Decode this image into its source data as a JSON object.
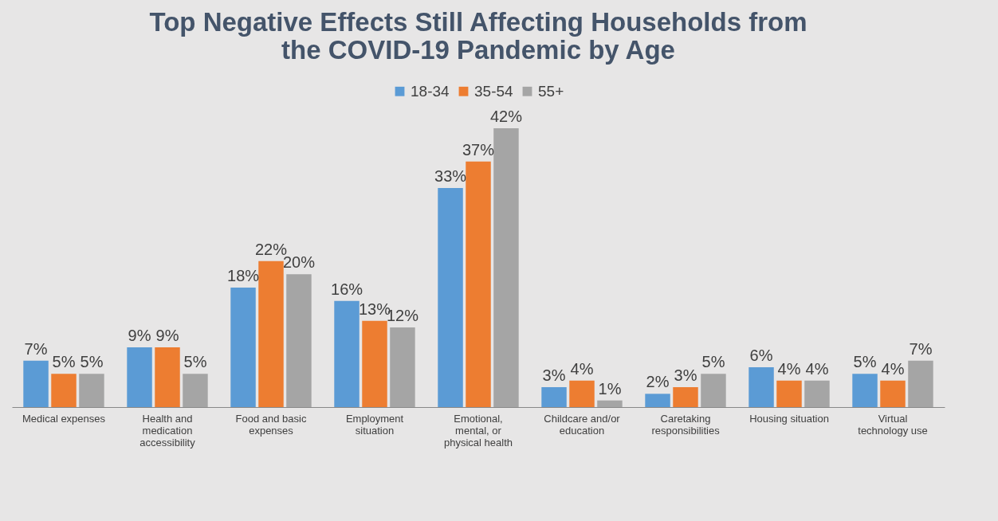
{
  "chart_data": {
    "type": "bar",
    "title": "Top Negative Effects Still Affecting Households from the COVID-19 Pandemic by Age",
    "categories": [
      "Medical expenses",
      "Health and medication accessibility",
      "Food and basic expenses",
      "Employment situation",
      "Emotional, mental, or physical health",
      "Childcare and/or education",
      "Caretaking responsibilities",
      "Housing situation",
      "Virtual technology use"
    ],
    "series": [
      {
        "name": "18-34",
        "color": "#5b9bd5",
        "values": [
          7,
          9,
          18,
          16,
          33,
          3,
          2,
          6,
          5
        ],
        "value_labels": [
          "7%",
          "9%",
          "18%",
          "16%",
          "33%",
          "3%",
          "2%",
          "6%",
          "5%"
        ]
      },
      {
        "name": "35-54",
        "color": "#ed7d31",
        "values": [
          5,
          9,
          22,
          13,
          37,
          4,
          3,
          4,
          4
        ],
        "value_labels": [
          "5%",
          "9%",
          "22%",
          "13%",
          "37%",
          "4%",
          "3%",
          "4%",
          "4%"
        ]
      },
      {
        "name": "55+",
        "color": "#a5a5a5",
        "values": [
          5,
          5,
          20,
          12,
          42,
          1,
          5,
          4,
          7
        ],
        "value_labels": [
          "5%",
          "5%",
          "20%",
          "12%",
          "42%",
          "1%",
          "5%",
          "4%",
          "7%"
        ]
      }
    ],
    "legend": "top"
  }
}
